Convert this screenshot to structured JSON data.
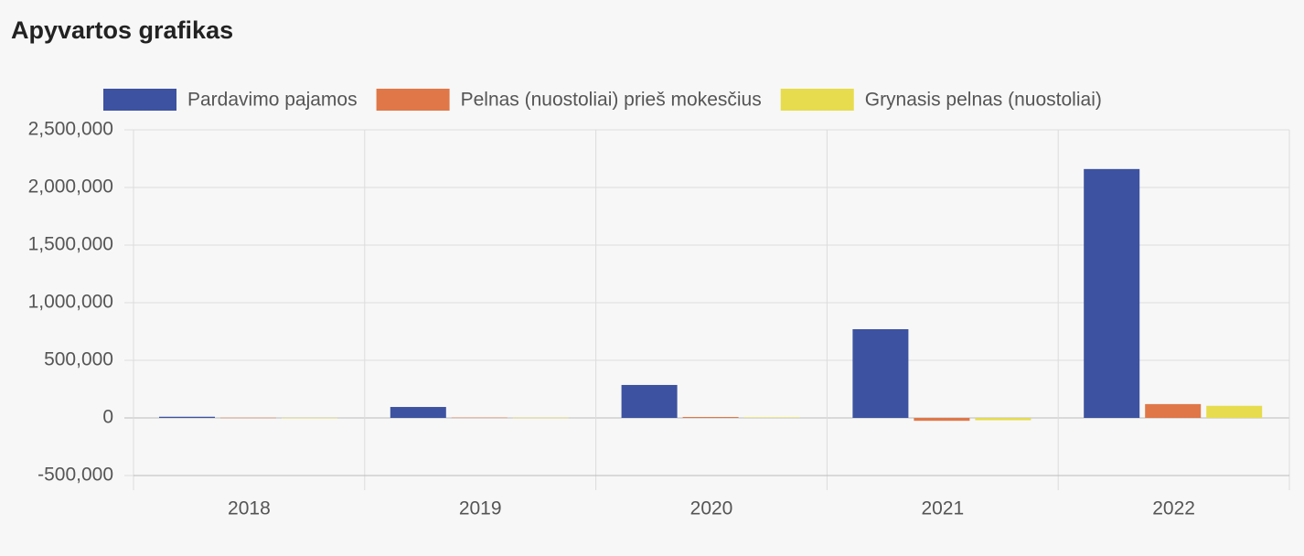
{
  "chart_data": {
    "type": "bar",
    "title": "Apyvartos grafikas",
    "categories": [
      "2018",
      "2019",
      "2020",
      "2021",
      "2022"
    ],
    "series": [
      {
        "name": "Pardavimo pajamos",
        "color": "#3d52a0",
        "values": [
          10000,
          95000,
          286000,
          770000,
          2160000
        ]
      },
      {
        "name": "Pelnas (nuostoliai) prieš mokesčius",
        "color": "#e07748",
        "values": [
          2000,
          3000,
          8000,
          -25000,
          120000
        ]
      },
      {
        "name": "Grynasis pelnas (nuostoliai)",
        "color": "#e6dc4e",
        "values": [
          1000,
          2000,
          5000,
          -20000,
          105000
        ]
      }
    ],
    "ylim": [
      -500000,
      2500000
    ],
    "yticks": [
      {
        "value": -500000,
        "label": "-500,000"
      },
      0,
      {
        "value": 500000,
        "label": "500,000"
      },
      {
        "value": 1000000,
        "label": "1,000,000"
      },
      {
        "value": 1500000,
        "label": "1,500,000"
      },
      {
        "value": 2000000,
        "label": "2,000,000"
      },
      {
        "value": 2500000,
        "label": "2,500,000"
      }
    ],
    "grid": true,
    "legend": "top"
  }
}
